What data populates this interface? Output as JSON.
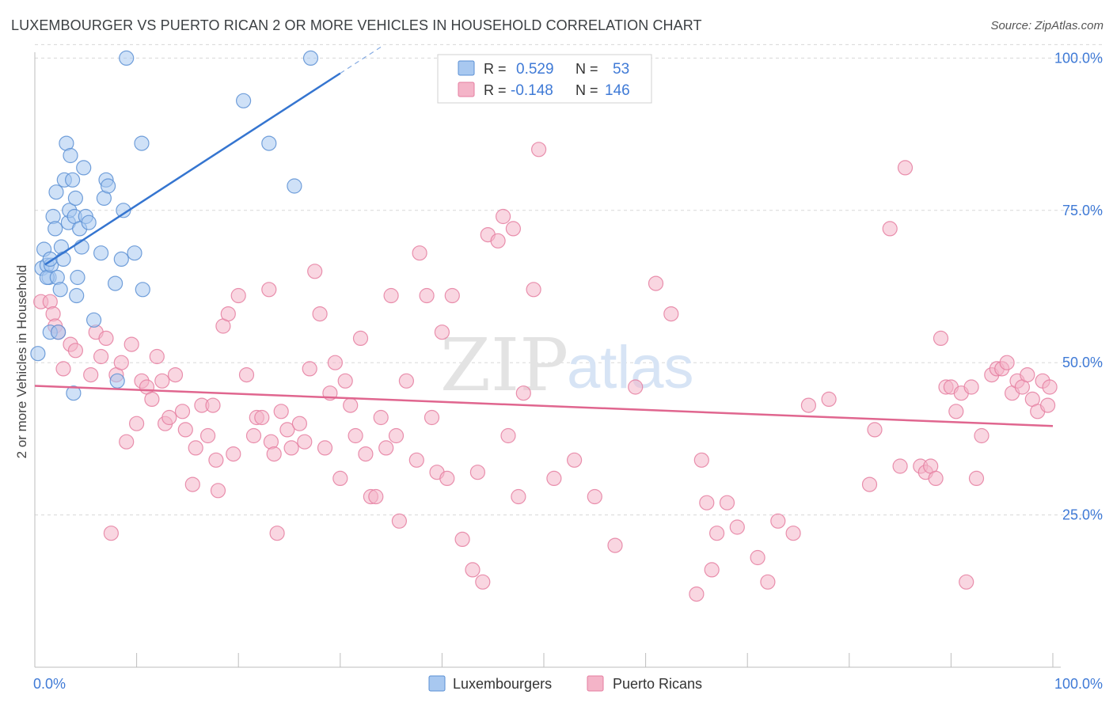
{
  "title": "LUXEMBOURGER VS PUERTO RICAN 2 OR MORE VEHICLES IN HOUSEHOLD CORRELATION CHART",
  "source": "Source: ZipAtlas.com",
  "watermark": {
    "zip": "ZIP",
    "atlas": "atlas"
  },
  "colors": {
    "blue_fill": "#a8c8f0",
    "blue_stroke": "#5a8fd4",
    "blue_line": "#3575d0",
    "pink_fill": "#f4b4c8",
    "pink_stroke": "#e57ea0",
    "pink_line": "#e0668f",
    "axis_label": "#3f7ad6",
    "grid": "#d8d8d8"
  },
  "legend": {
    "rows": [
      {
        "r_label": "R =",
        "r_value": "0.529",
        "n_label": "N =",
        "n_value": "53"
      },
      {
        "r_label": "R =",
        "r_value": "-0.148",
        "n_label": "N =",
        "n_value": "146"
      }
    ]
  },
  "bottom_legend": [
    "Luxembourgers",
    "Puerto Ricans"
  ],
  "chart_data": {
    "type": "scatter",
    "ylabel": "2 or more Vehicles in Household",
    "xlim": [
      0,
      100
    ],
    "ylim": [
      0,
      102
    ],
    "x_tick_labels": [
      "0.0%",
      "100.0%"
    ],
    "y_ticks": [
      25,
      50,
      75,
      100
    ],
    "y_tick_labels": [
      "25.0%",
      "50.0%",
      "75.0%",
      "100.0%"
    ],
    "grid": true,
    "legend_position": "top-center",
    "series": [
      {
        "name": "Luxembourgers",
        "color": "#a8c8f0",
        "trend": {
          "x": [
            1,
            30
          ],
          "y": [
            66.1,
            97.5
          ],
          "dashed_to_x": 34
        },
        "points": [
          [
            0.3,
            51.5
          ],
          [
            0.7,
            65.5
          ],
          [
            0.9,
            68.6
          ],
          [
            1.2,
            66
          ],
          [
            1.4,
            64
          ],
          [
            1.2,
            64
          ],
          [
            1.5,
            55
          ],
          [
            1.6,
            66
          ],
          [
            1.5,
            67
          ],
          [
            1.8,
            74
          ],
          [
            2.0,
            72
          ],
          [
            2.1,
            78
          ],
          [
            2.2,
            64
          ],
          [
            2.3,
            55
          ],
          [
            2.5,
            62
          ],
          [
            2.6,
            69
          ],
          [
            2.8,
            67
          ],
          [
            2.9,
            80
          ],
          [
            3.1,
            86
          ],
          [
            3.3,
            73
          ],
          [
            3.4,
            75
          ],
          [
            3.5,
            84
          ],
          [
            3.7,
            80
          ],
          [
            3.8,
            45
          ],
          [
            3.9,
            74
          ],
          [
            4.0,
            77
          ],
          [
            4.1,
            61
          ],
          [
            4.2,
            64
          ],
          [
            4.4,
            72
          ],
          [
            4.6,
            69
          ],
          [
            4.8,
            82
          ],
          [
            5.0,
            74
          ],
          [
            5.3,
            73
          ],
          [
            5.8,
            57
          ],
          [
            6.5,
            68
          ],
          [
            6.8,
            77
          ],
          [
            7.0,
            80
          ],
          [
            7.2,
            79
          ],
          [
            7.9,
            63
          ],
          [
            8.1,
            47
          ],
          [
            8.5,
            67
          ],
          [
            8.7,
            75
          ],
          [
            9.0,
            100
          ],
          [
            9.8,
            68
          ],
          [
            10.5,
            86
          ],
          [
            10.6,
            62
          ],
          [
            20.5,
            93
          ],
          [
            23,
            86
          ],
          [
            25.5,
            79
          ],
          [
            27.1,
            100
          ]
        ]
      },
      {
        "name": "Puerto Ricans",
        "color": "#f4b4c8",
        "trend": {
          "x": [
            0,
            100
          ],
          "y": [
            46.2,
            39.6
          ]
        },
        "points": [
          [
            0.6,
            60
          ],
          [
            1.5,
            60
          ],
          [
            1.8,
            58
          ],
          [
            2.0,
            56
          ],
          [
            2.3,
            55
          ],
          [
            2.8,
            49
          ],
          [
            3.5,
            53
          ],
          [
            4.0,
            52
          ],
          [
            5.5,
            48
          ],
          [
            6.0,
            55
          ],
          [
            6.5,
            51
          ],
          [
            7.0,
            54
          ],
          [
            7.5,
            22
          ],
          [
            8.0,
            48
          ],
          [
            8.5,
            50
          ],
          [
            9.0,
            37
          ],
          [
            9.5,
            53
          ],
          [
            10.0,
            40
          ],
          [
            10.5,
            47
          ],
          [
            11.0,
            46
          ],
          [
            11.5,
            44
          ],
          [
            12.0,
            51
          ],
          [
            12.5,
            47
          ],
          [
            12.8,
            40
          ],
          [
            13.2,
            41
          ],
          [
            13.8,
            48
          ],
          [
            14.5,
            42
          ],
          [
            14.8,
            39
          ],
          [
            15.5,
            30
          ],
          [
            15.8,
            36
          ],
          [
            16.4,
            43
          ],
          [
            17.0,
            38
          ],
          [
            17.5,
            43
          ],
          [
            17.8,
            34
          ],
          [
            18.0,
            29
          ],
          [
            18.5,
            56
          ],
          [
            19.0,
            58
          ],
          [
            19.5,
            35
          ],
          [
            20.0,
            61
          ],
          [
            20.8,
            48
          ],
          [
            21.5,
            38
          ],
          [
            21.8,
            41
          ],
          [
            22.3,
            41
          ],
          [
            23.0,
            62
          ],
          [
            23.2,
            37
          ],
          [
            23.5,
            35
          ],
          [
            23.8,
            22
          ],
          [
            24.2,
            42
          ],
          [
            24.8,
            39
          ],
          [
            25.2,
            36
          ],
          [
            26.0,
            40
          ],
          [
            26.5,
            37
          ],
          [
            27.0,
            49
          ],
          [
            27.5,
            65
          ],
          [
            28.0,
            58
          ],
          [
            28.5,
            36
          ],
          [
            29.0,
            45
          ],
          [
            29.5,
            50
          ],
          [
            30.0,
            31
          ],
          [
            30.5,
            47
          ],
          [
            31.0,
            43
          ],
          [
            31.5,
            38
          ],
          [
            32.0,
            54
          ],
          [
            32.5,
            35
          ],
          [
            33.0,
            28
          ],
          [
            33.5,
            28
          ],
          [
            34.0,
            41
          ],
          [
            34.5,
            36
          ],
          [
            35.0,
            61
          ],
          [
            35.5,
            38
          ],
          [
            35.8,
            24
          ],
          [
            36.5,
            47
          ],
          [
            37.5,
            34
          ],
          [
            37.8,
            68
          ],
          [
            38.5,
            61
          ],
          [
            39.0,
            41
          ],
          [
            39.5,
            32
          ],
          [
            40.0,
            55
          ],
          [
            40.5,
            31
          ],
          [
            41.0,
            61
          ],
          [
            42.0,
            21
          ],
          [
            43.0,
            16
          ],
          [
            43.5,
            32
          ],
          [
            44.0,
            14
          ],
          [
            44.5,
            71
          ],
          [
            45.5,
            70
          ],
          [
            46.0,
            74
          ],
          [
            46.5,
            38
          ],
          [
            47.0,
            72
          ],
          [
            47.5,
            28
          ],
          [
            48.0,
            45
          ],
          [
            49.0,
            62
          ],
          [
            49.5,
            85
          ],
          [
            51,
            31
          ],
          [
            53,
            34
          ],
          [
            55,
            28
          ],
          [
            57,
            20
          ],
          [
            59,
            46
          ],
          [
            61,
            63
          ],
          [
            62.5,
            58
          ],
          [
            65,
            12
          ],
          [
            65.5,
            34
          ],
          [
            66,
            27
          ],
          [
            66.5,
            16
          ],
          [
            67,
            22
          ],
          [
            68,
            27
          ],
          [
            69,
            23
          ],
          [
            71,
            18
          ],
          [
            72,
            14
          ],
          [
            73,
            24
          ],
          [
            74.5,
            22
          ],
          [
            76,
            43
          ],
          [
            78,
            44
          ],
          [
            82,
            30
          ],
          [
            82.5,
            39
          ],
          [
            84,
            72
          ],
          [
            85,
            33
          ],
          [
            85.5,
            82
          ],
          [
            87,
            33
          ],
          [
            87.5,
            32
          ],
          [
            88,
            33
          ],
          [
            88.5,
            31
          ],
          [
            89,
            54
          ],
          [
            89.5,
            46
          ],
          [
            90,
            46
          ],
          [
            90.5,
            42
          ],
          [
            91,
            45
          ],
          [
            91.5,
            14
          ],
          [
            92,
            46
          ],
          [
            92.5,
            31
          ],
          [
            93,
            38
          ],
          [
            94,
            48
          ],
          [
            94.5,
            49
          ],
          [
            95,
            49
          ],
          [
            95.5,
            50
          ],
          [
            96,
            45
          ],
          [
            96.5,
            47
          ],
          [
            97,
            46
          ],
          [
            97.5,
            48
          ],
          [
            98,
            44
          ],
          [
            98.5,
            42
          ],
          [
            99,
            47
          ],
          [
            99.5,
            43
          ],
          [
            99.7,
            46
          ]
        ]
      }
    ]
  }
}
